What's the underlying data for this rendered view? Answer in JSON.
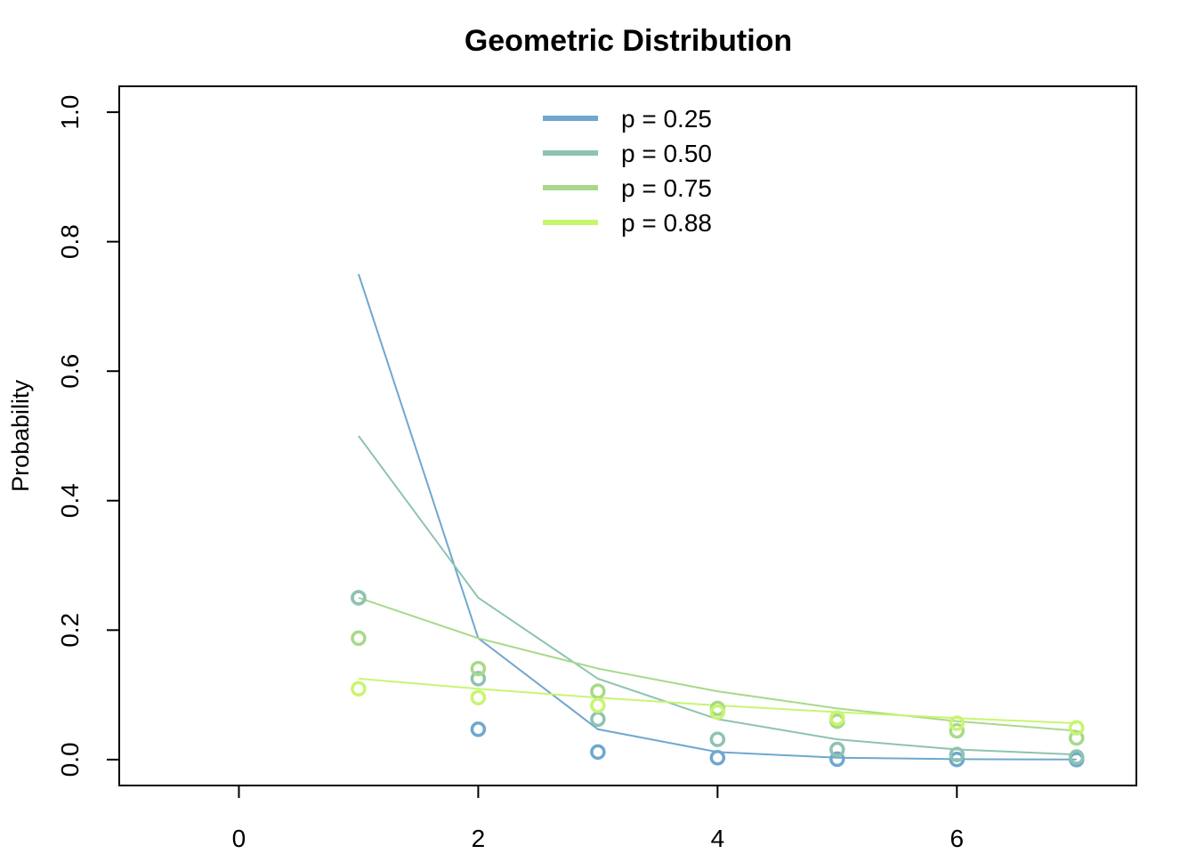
{
  "chart_data": {
    "type": "line",
    "title": "Geometric Distribution",
    "xlabel": "",
    "ylabel": "Probability",
    "xlim": [
      -1,
      7.5
    ],
    "ylim": [
      0,
      1
    ],
    "x_ticks": [
      0,
      2,
      4,
      6
    ],
    "y_ticks": [
      0.0,
      0.2,
      0.4,
      0.6,
      0.8,
      1.0
    ],
    "x_tick_labels": [
      "0",
      "2",
      "4",
      "6"
    ],
    "y_tick_labels": [
      "0.0",
      "0.2",
      "0.4",
      "0.6",
      "0.8",
      "1.0"
    ],
    "grid": false,
    "legend_position": "top-center",
    "line_x": [
      1,
      2,
      3,
      4,
      5,
      6,
      7
    ],
    "point_x": [
      1,
      2,
      3,
      4,
      5,
      6,
      7
    ],
    "series": [
      {
        "name": "p = 0.25",
        "color": "#6fa7cf",
        "line_values": [
          0.75,
          0.1875,
          0.0469,
          0.0117,
          0.0029,
          0.0007,
          0.0002
        ],
        "point_values": [
          0.25,
          0.0469,
          0.0117,
          0.0029,
          0.0007,
          0.0002,
          0.0
        ]
      },
      {
        "name": "p = 0.50",
        "color": "#8ec3b0",
        "line_values": [
          0.5,
          0.25,
          0.125,
          0.0625,
          0.0313,
          0.0156,
          0.0078
        ],
        "point_values": [
          0.25,
          0.125,
          0.0625,
          0.0313,
          0.0156,
          0.0078,
          0.0039
        ]
      },
      {
        "name": "p = 0.75",
        "color": "#a8d98a",
        "line_values": [
          0.25,
          0.1875,
          0.1406,
          0.1055,
          0.0791,
          0.0593,
          0.0445
        ],
        "point_values": [
          0.1875,
          0.1406,
          0.1055,
          0.0791,
          0.0593,
          0.0445,
          0.0334
        ]
      },
      {
        "name": "p = 0.88",
        "color": "#c8f570",
        "line_values": [
          0.125,
          0.1094,
          0.0957,
          0.0837,
          0.0733,
          0.0641,
          0.0561
        ],
        "point_values": [
          0.1094,
          0.0957,
          0.0837,
          0.0733,
          0.0641,
          0.0561,
          0.0491
        ]
      }
    ]
  }
}
